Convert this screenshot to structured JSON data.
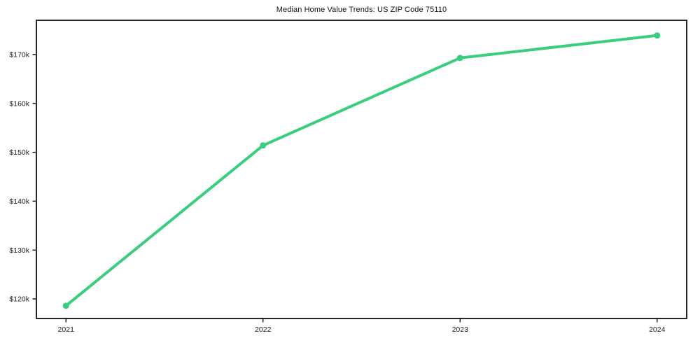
{
  "chart_data": {
    "type": "line",
    "title": "Median Home Value Trends: US ZIP Code 75110",
    "x": [
      2021,
      2022,
      2023,
      2024
    ],
    "series": [
      {
        "name": "Median Home Value",
        "values": [
          118600,
          151400,
          169300,
          173900
        ]
      }
    ],
    "xlabel": "",
    "ylabel": "",
    "xlim": [
      2020.85,
      2024.15
    ],
    "ylim": [
      116000,
      177000
    ],
    "xticks": [
      {
        "value": 2021,
        "label": "2021"
      },
      {
        "value": 2022,
        "label": "2022"
      },
      {
        "value": 2023,
        "label": "2023"
      },
      {
        "value": 2024,
        "label": "2024"
      }
    ],
    "yticks": [
      {
        "value": 120000,
        "label": "$120k"
      },
      {
        "value": 130000,
        "label": "$130k"
      },
      {
        "value": 140000,
        "label": "$140k"
      },
      {
        "value": 150000,
        "label": "$150k"
      },
      {
        "value": 160000,
        "label": "$160k"
      },
      {
        "value": 170000,
        "label": "$170k"
      }
    ],
    "grid": false,
    "legend": false,
    "line_color": "#3bcd7e",
    "marker": "circle",
    "background": "#ffffff",
    "axis_color": "#000000",
    "tick_label_color": "#222222"
  }
}
